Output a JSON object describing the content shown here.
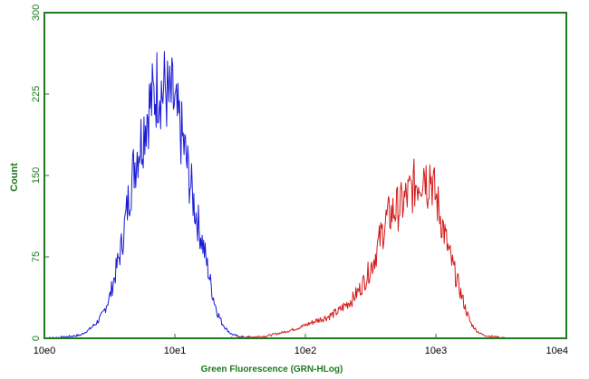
{
  "chart_data": {
    "type": "line",
    "title": "",
    "xlabel": "Green Fluorescence (GRN-HLog)",
    "ylabel": "Count",
    "x_scale": "log",
    "xlim": [
      1,
      10000
    ],
    "ylim": [
      0,
      300
    ],
    "x_tick_values": [
      1,
      10,
      100,
      1000,
      10000
    ],
    "x_tick_labels": [
      "10e0",
      "10e1",
      "10e2",
      "10e3",
      "10e4"
    ],
    "y_tick_values": [
      0,
      75,
      150,
      225,
      300
    ],
    "y_tick_labels": [
      "0",
      "75",
      "150",
      "225",
      "300"
    ],
    "grid": false,
    "colors": {
      "frame": "#1f7a1f",
      "blue_series": "#1a1ad6",
      "red_series": "#d41c1c"
    },
    "series": [
      {
        "color": "#1a1ad6",
        "x": [
          1.0,
          1.4,
          1.9,
          2.2,
          2.5,
          2.8,
          3.2,
          3.5,
          3.9,
          4.2,
          4.5,
          4.9,
          5.2,
          5.6,
          6.0,
          6.4,
          6.8,
          7.2,
          7.6,
          8.0,
          8.4,
          9.0,
          9.6,
          10.2,
          10.9,
          11.8,
          12.6,
          13.5,
          14.5,
          15.5,
          16.5,
          17.5,
          18.5,
          19.5,
          21.0,
          23.0,
          25.0,
          27.0,
          30.0,
          34.0,
          40.0
        ],
        "y": [
          0,
          1,
          3,
          8,
          14,
          22,
          40,
          60,
          85,
          110,
          135,
          160,
          175,
          185,
          205,
          215,
          220,
          230,
          238,
          225,
          232,
          218,
          222,
          205,
          195,
          175,
          155,
          135,
          115,
          100,
          85,
          70,
          55,
          40,
          25,
          14,
          8,
          4,
          2,
          1,
          0
        ]
      },
      {
        "color": "#d41c1c",
        "x": [
          25,
          35,
          50,
          65,
          80,
          100,
          120,
          150,
          180,
          200,
          230,
          260,
          290,
          330,
          370,
          420,
          480,
          540,
          600,
          660,
          720,
          780,
          820,
          860,
          900,
          960,
          1050,
          1150,
          1250,
          1400,
          1550,
          1700,
          1850,
          2050,
          2300,
          2600,
          3000,
          3500
        ],
        "y": [
          0,
          1,
          2,
          5,
          8,
          12,
          16,
          20,
          25,
          30,
          36,
          45,
          55,
          70,
          90,
          110,
          118,
          122,
          130,
          138,
          145,
          150,
          160,
          140,
          155,
          138,
          120,
          100,
          80,
          60,
          42,
          26,
          14,
          7,
          3,
          2,
          1,
          0
        ]
      }
    ]
  }
}
